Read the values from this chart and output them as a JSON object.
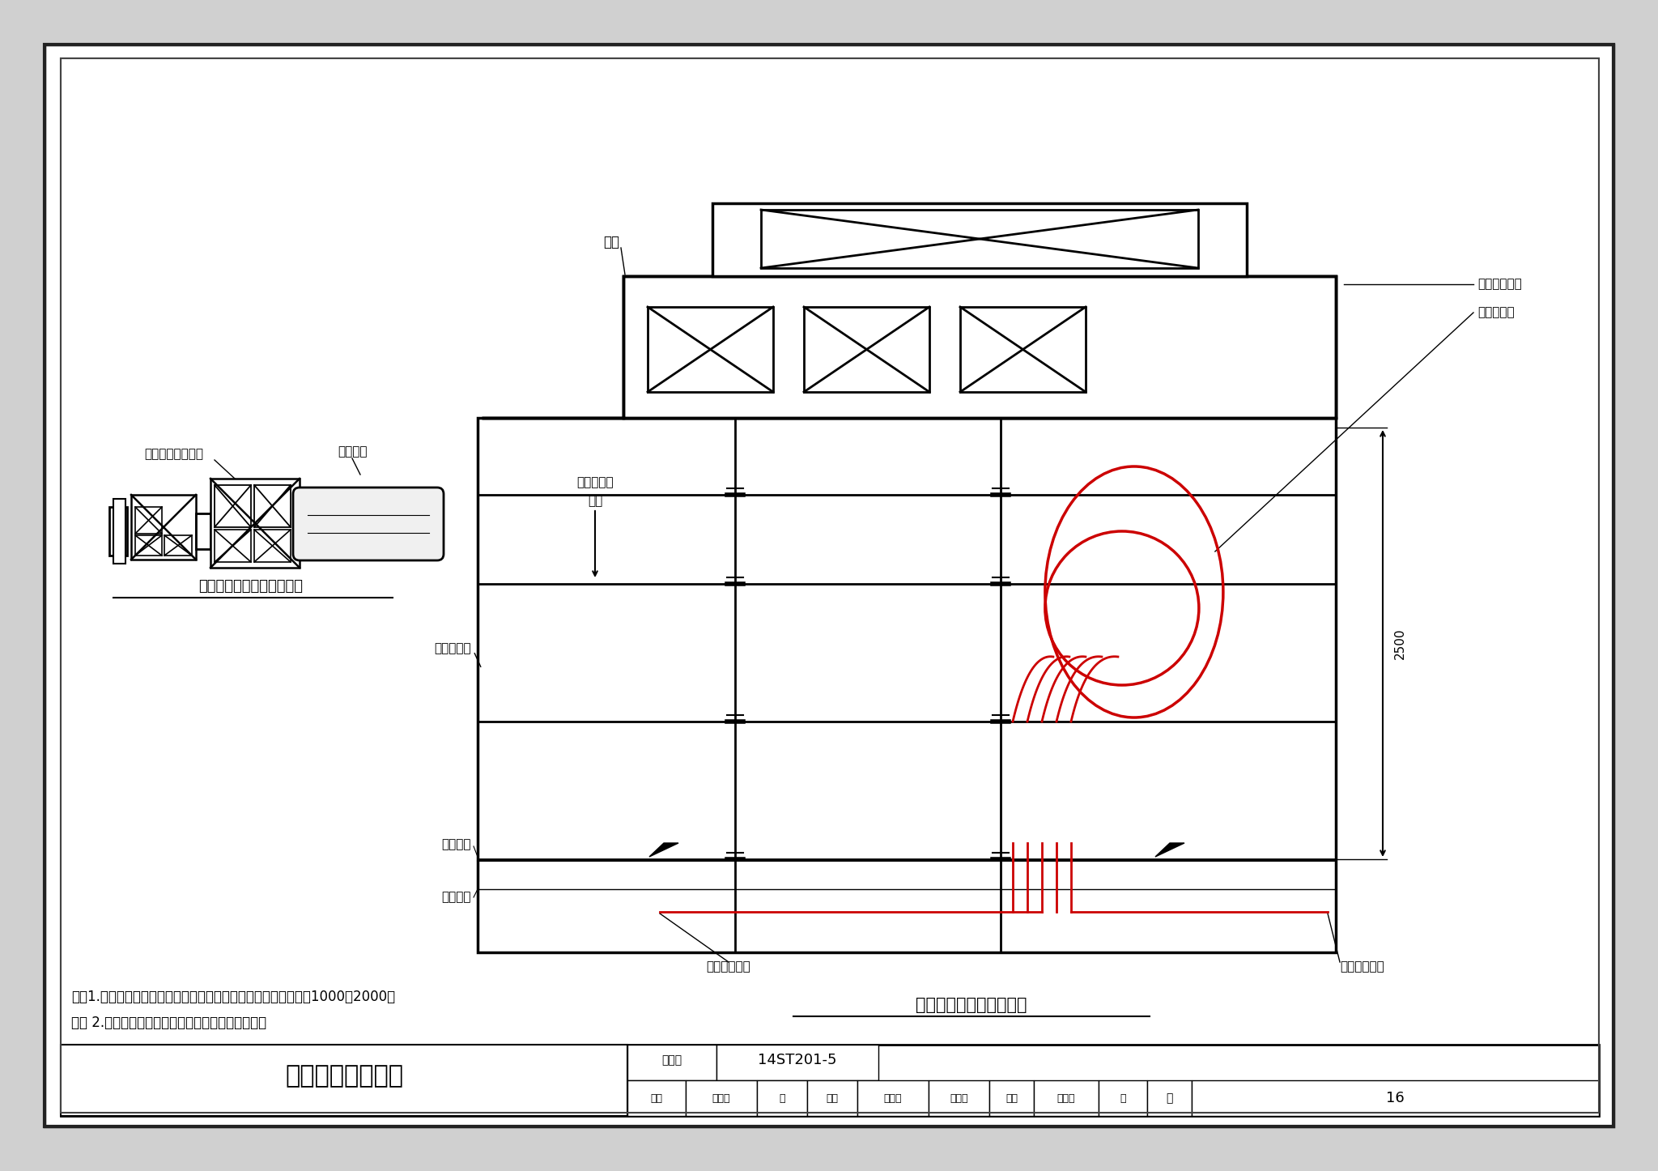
{
  "bg_color": "#d0d0d0",
  "page_bg": "#ffffff",
  "red": "#cc0000",
  "black": "#000000",
  "title_main": "电缆间爬架安装图",
  "title_num": "14ST201-5",
  "page_num": "16",
  "subtitle_right": "电缆间爬架安装正立面图",
  "subtitle_left": "漏泄同轴电缆接头正立面图",
  "note1": "注：1.　设备的引入电缆除接地线、漏氡电缆外，其预留长度应为1000～2000。",
  "note2": "　　 2.　爬架尺寸和高度根据现场实际情况可调整。",
  "l_fengguan": "风管",
  "l_wall": "与墙体固定点",
  "l_retain": "盗留的缆线",
  "l_guanglan": "光缆绝缘节",
  "l_static": "静电地板",
  "l_struct": "结构地面",
  "l_from": "引至通信机房",
  "l_to": "引至区间缆线",
  "l_axis_dir": "盗留轴安装",
  "l_axis_dir2": "方向",
  "l_connector": "漏泄同轴电缆接头",
  "l_cable": "泄漏电缆",
  "l_dim": "2500",
  "tb_tuji": "图集号",
  "tb_ye": "页",
  "tb_shenhe": "审核",
  "tb_wanglei": "王　磊",
  "tb_sig1": "芸",
  "tb_jiaodui": "校对",
  "tb_zhangxiaopei": "张晓披",
  "tb_sig2": "彼地阝",
  "tb_sheji": "设计",
  "tb_xiaorui": "肖　睿",
  "tb_sig3": "憵"
}
